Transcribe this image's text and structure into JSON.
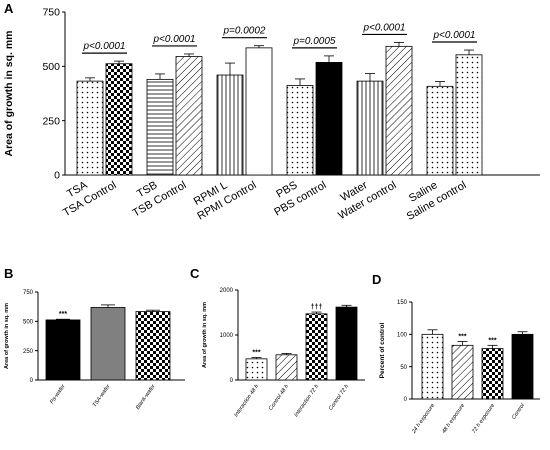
{
  "panel_labels": [
    "A",
    "B",
    "C",
    "D"
  ],
  "chart_data": [
    {
      "panel": "A",
      "type": "bar",
      "ylabel": "Area of growth in sq. mm",
      "ylim": [
        0,
        750
      ],
      "yticks": [
        0,
        250,
        500,
        750
      ],
      "grid": false,
      "categories": [
        "TSA",
        "TSA Control",
        "TSB",
        "TSB Control",
        "RPMI L",
        "RPMI Control",
        "PBS",
        "PBS control",
        "Water",
        "Water control",
        "Saline",
        "Saline control"
      ],
      "values": [
        432,
        512,
        440,
        545,
        460,
        585,
        412,
        518,
        432,
        592,
        408,
        553
      ],
      "errors": [
        15,
        12,
        25,
        12,
        55,
        10,
        30,
        30,
        35,
        18,
        22,
        22
      ],
      "patterns": [
        "dots",
        "checker",
        "hlines",
        "diag",
        "vlines",
        "white",
        "dots",
        "black",
        "vlines",
        "diag",
        "dots",
        "dots"
      ],
      "annotations": [
        "p<0.0001",
        "p<0.0001",
        "p=0.0002",
        "p=0.0005",
        "p<0.0001",
        "p<0.0001"
      ]
    },
    {
      "panel": "B",
      "type": "bar",
      "ylabel": "Area of growth in sq. mm",
      "ylim": [
        0,
        750
      ],
      "yticks": [
        0,
        250,
        500,
        750
      ],
      "grid": false,
      "categories": [
        "Pa-wafer",
        "TSA-wafer",
        "Blank-wafer"
      ],
      "values": [
        512,
        618,
        583
      ],
      "errors": [
        6,
        22,
        12
      ],
      "patterns": [
        "black",
        "gray",
        "checker"
      ],
      "annotations": [
        "***",
        "",
        ""
      ]
    },
    {
      "panel": "C",
      "type": "bar",
      "ylabel": "Area of growth in sq. mm",
      "ylim": [
        0,
        2000
      ],
      "yticks": [
        0,
        1000,
        2000
      ],
      "grid": false,
      "categories": [
        "Interaction 48 h",
        "Control 48 h",
        "Interaction 72 h",
        "Control 72 h"
      ],
      "values": [
        470,
        560,
        1470,
        1620
      ],
      "errors": [
        30,
        30,
        40,
        40
      ],
      "patterns": [
        "dots",
        "diag",
        "checker",
        "black"
      ],
      "annotations": [
        "***",
        "",
        "†††",
        ""
      ]
    },
    {
      "panel": "D",
      "type": "bar",
      "ylabel": "Percent of control",
      "ylim": [
        0,
        150
      ],
      "yticks": [
        0,
        50,
        100,
        150
      ],
      "grid": false,
      "categories": [
        "24 h exposure",
        "48 h exposure",
        "72 h exposure",
        "Control"
      ],
      "values": [
        100,
        83,
        78,
        100
      ],
      "errors": [
        7,
        6,
        5,
        4
      ],
      "patterns": [
        "dots",
        "diag",
        "checker",
        "black"
      ],
      "annotations": [
        "",
        "***",
        "***",
        ""
      ]
    }
  ]
}
